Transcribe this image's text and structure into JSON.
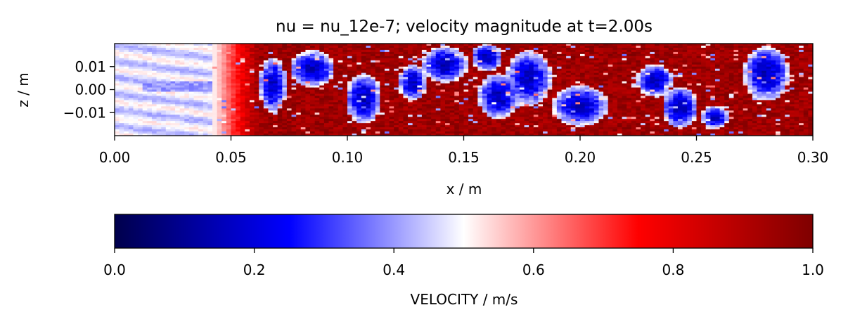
{
  "chart_data": [
    {
      "type": "heatmap",
      "title": "nu = nu_12e-7; velocity magnitude at t=2.00s",
      "xlabel": "x / m",
      "ylabel": "z / m",
      "xlim": [
        0.0,
        0.3
      ],
      "ylim": [
        -0.02,
        0.02
      ],
      "x_ticks": [
        0.0,
        0.05,
        0.1,
        0.15,
        0.2,
        0.25,
        0.3
      ],
      "x_tick_labels": [
        "0.00",
        "0.05",
        "0.10",
        "0.15",
        "0.20",
        "0.25",
        "0.30"
      ],
      "y_ticks": [
        0.01,
        0.0,
        -0.01
      ],
      "y_tick_labels": [
        "0.01",
        "0.00",
        "−0.01"
      ],
      "colormap": "seismic",
      "value_range": [
        0.0,
        1.0
      ],
      "grid": false,
      "field_description": "velocity magnitude field: pale/white near inlet (x<0.04), dark red turbulent region downstream with blue low-velocity pockets"
    },
    {
      "type": "colorbar",
      "orientation": "horizontal",
      "label": "VELOCITY / m/s",
      "range": [
        0.0,
        1.0
      ],
      "ticks": [
        0.0,
        0.2,
        0.4,
        0.6,
        0.8,
        1.0
      ],
      "tick_labels": [
        "0.0",
        "0.2",
        "0.4",
        "0.6",
        "0.8",
        "1.0"
      ],
      "colors": [
        "#00004c",
        "#0000ff",
        "#ffffff",
        "#ff0000",
        "#7f0000"
      ]
    }
  ]
}
